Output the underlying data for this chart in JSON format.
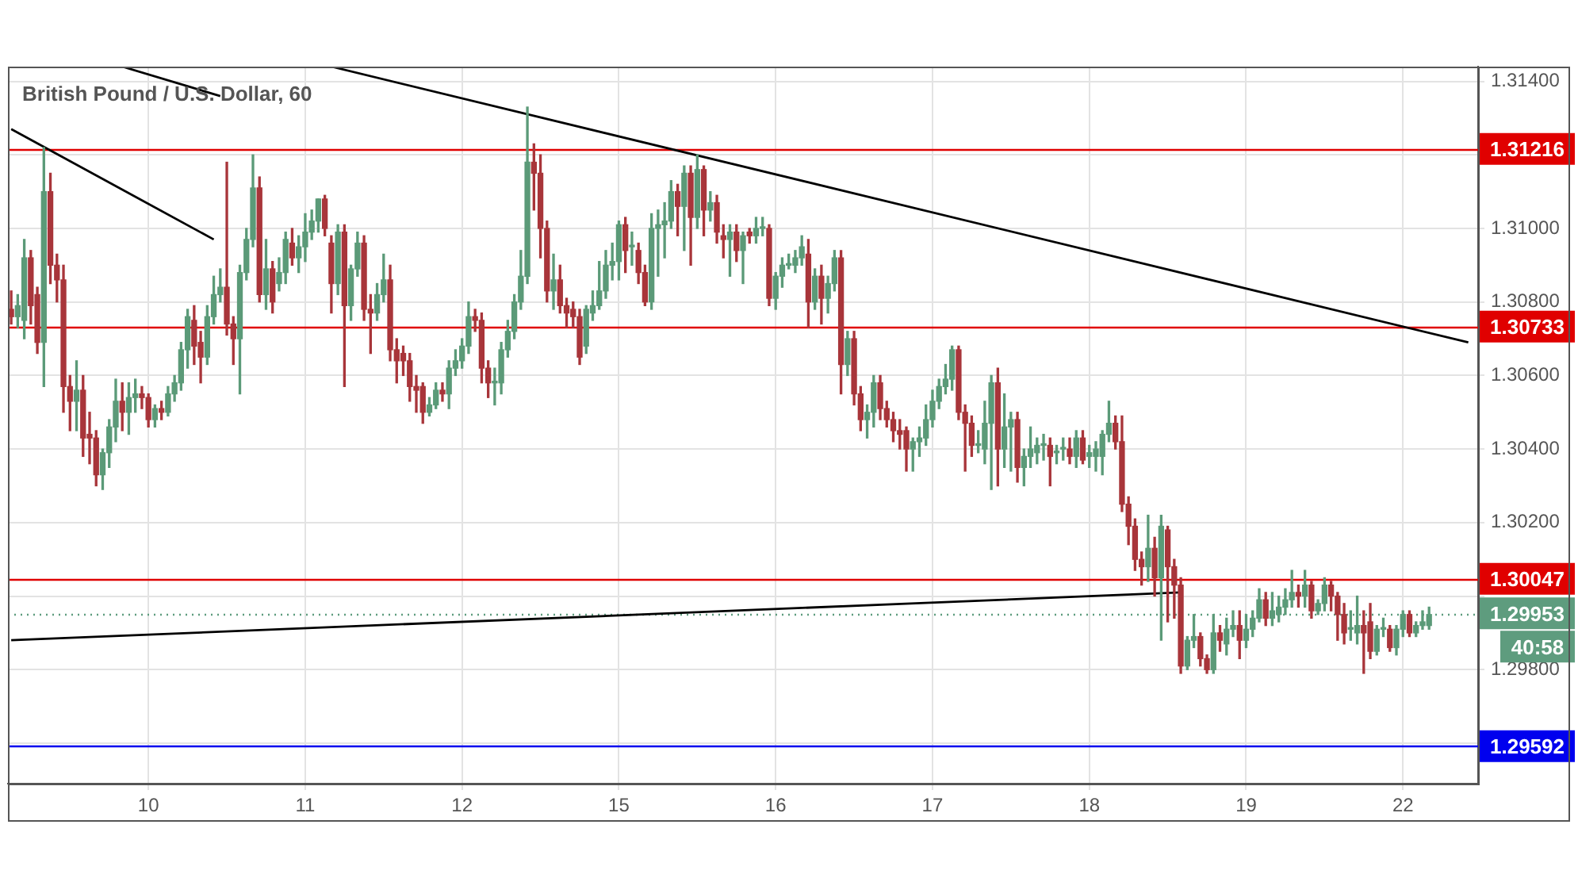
{
  "chart_data": {
    "type": "candlestick",
    "title": "British Pound / U.S. Dollar, 60",
    "categories": [
      null,
      null,
      null,
      null,
      null,
      null,
      null,
      null,
      null,
      null,
      null,
      null,
      null,
      null,
      null,
      null,
      null,
      null,
      null,
      null,
      null,
      "10",
      null,
      null,
      null,
      null,
      null,
      null,
      null,
      null,
      null,
      null,
      null,
      null,
      null,
      null,
      null,
      null,
      null,
      null,
      null,
      null,
      null,
      null,
      null,
      "11",
      null,
      null,
      null,
      null,
      null,
      null,
      null,
      null,
      null,
      null,
      null,
      null,
      null,
      null,
      null,
      null,
      null,
      null,
      null,
      null,
      null,
      null,
      null,
      "12",
      null,
      null,
      null,
      null,
      null,
      null,
      null,
      null,
      null,
      null,
      null,
      null,
      null,
      null,
      null,
      null,
      null,
      null,
      null,
      null,
      null,
      null,
      null,
      "15",
      null,
      null,
      null,
      null,
      null,
      null,
      null,
      null,
      null,
      null,
      null,
      null,
      null,
      null,
      null,
      null,
      null,
      null,
      null,
      null,
      null,
      null,
      null,
      "16",
      null,
      null,
      null,
      null,
      null,
      null,
      null,
      null,
      null,
      null,
      null,
      null,
      null,
      null,
      null,
      null,
      null,
      null,
      null,
      null,
      null,
      null,
      null,
      "17",
      null,
      null,
      null,
      null,
      null,
      null,
      null,
      null,
      null,
      null,
      null,
      null,
      null,
      null,
      null,
      null,
      null,
      null,
      null,
      null,
      null,
      null,
      null,
      "18",
      null,
      null,
      null,
      null,
      null,
      null,
      null,
      null,
      null,
      null,
      null,
      null,
      null,
      null,
      null,
      null,
      null,
      null,
      null,
      null,
      null,
      null,
      null,
      "19",
      null,
      null,
      null,
      null,
      null,
      null,
      null,
      null,
      null,
      null,
      null,
      null,
      null,
      null,
      null,
      null,
      null,
      null,
      null,
      null,
      null,
      null,
      null,
      "22",
      null,
      null,
      null,
      null,
      null,
      null,
      null,
      null,
      null,
      null,
      null
    ],
    "ohlc": [
      [
        1.3078,
        1.3083,
        1.3074,
        1.3076
      ],
      [
        1.3076,
        1.3082,
        1.3073,
        1.3079
      ],
      [
        1.3075,
        1.3097,
        1.307,
        1.3092
      ],
      [
        1.3092,
        1.3094,
        1.3074,
        1.3079
      ],
      [
        1.3082,
        1.3084,
        1.3066,
        1.3069
      ],
      [
        1.3069,
        1.3122,
        1.3057,
        1.311
      ],
      [
        1.311,
        1.3115,
        1.3085,
        1.309
      ],
      [
        1.309,
        1.3093,
        1.308,
        1.3086
      ],
      [
        1.3086,
        1.309,
        1.305,
        1.3057
      ],
      [
        1.3057,
        1.306,
        1.3045,
        1.3053
      ],
      [
        1.3053,
        1.3064,
        1.3045,
        1.3056
      ],
      [
        1.3056,
        1.306,
        1.3038,
        1.3043
      ],
      [
        1.3044,
        1.305,
        1.3036,
        1.3043
      ],
      [
        1.3043,
        1.3045,
        1.303,
        1.3033
      ],
      [
        1.3033,
        1.304,
        1.3029,
        1.3039
      ],
      [
        1.3039,
        1.3048,
        1.3035,
        1.3046
      ],
      [
        1.3046,
        1.3059,
        1.3042,
        1.3053
      ],
      [
        1.3053,
        1.3058,
        1.3045,
        1.305
      ],
      [
        1.305,
        1.3058,
        1.3044,
        1.3054
      ],
      [
        1.3054,
        1.3059,
        1.305,
        1.3055
      ],
      [
        1.3055,
        1.3057,
        1.3051,
        1.3054
      ],
      [
        1.3054,
        1.3055,
        1.3046,
        1.3048
      ],
      [
        1.3048,
        1.3052,
        1.3046,
        1.3051
      ],
      [
        1.3051,
        1.3053,
        1.3048,
        1.305
      ],
      [
        1.305,
        1.3057,
        1.3049,
        1.3055
      ],
      [
        1.3055,
        1.306,
        1.3053,
        1.3058
      ],
      [
        1.3058,
        1.3069,
        1.3056,
        1.3067
      ],
      [
        1.3067,
        1.3078,
        1.3062,
        1.3076
      ],
      [
        1.3075,
        1.3079,
        1.3063,
        1.3068
      ],
      [
        1.3069,
        1.3072,
        1.3058,
        1.3065
      ],
      [
        1.3065,
        1.3079,
        1.3063,
        1.3076
      ],
      [
        1.3076,
        1.3087,
        1.3074,
        1.3082
      ],
      [
        1.3082,
        1.3089,
        1.308,
        1.3084
      ],
      [
        1.3084,
        1.3118,
        1.3071,
        1.3074
      ],
      [
        1.3074,
        1.3076,
        1.3063,
        1.307
      ],
      [
        1.307,
        1.309,
        1.3055,
        1.3088
      ],
      [
        1.3088,
        1.31,
        1.3086,
        1.3097
      ],
      [
        1.3097,
        1.312,
        1.3095,
        1.3111
      ],
      [
        1.3111,
        1.3114,
        1.308,
        1.3082
      ],
      [
        1.3082,
        1.3097,
        1.3078,
        1.3089
      ],
      [
        1.3089,
        1.3091,
        1.3077,
        1.308
      ],
      [
        1.3085,
        1.3092,
        1.3083,
        1.3088
      ],
      [
        1.3088,
        1.3099,
        1.3085,
        1.3097
      ],
      [
        1.3096,
        1.31,
        1.309,
        1.3092
      ],
      [
        1.3092,
        1.3098,
        1.3088,
        1.3095
      ],
      [
        1.3095,
        1.3104,
        1.3091,
        1.3099
      ],
      [
        1.3099,
        1.3105,
        1.3097,
        1.3102
      ],
      [
        1.3102,
        1.3108,
        1.3099,
        1.3108
      ],
      [
        1.3108,
        1.3109,
        1.3098,
        1.31
      ],
      [
        1.3096,
        1.3098,
        1.3077,
        1.3085
      ],
      [
        1.3085,
        1.3101,
        1.3082,
        1.3099
      ],
      [
        1.3099,
        1.3101,
        1.3057,
        1.3079
      ],
      [
        1.3079,
        1.309,
        1.3075,
        1.3089
      ],
      [
        1.3089,
        1.3099,
        1.3087,
        1.3096
      ],
      [
        1.3096,
        1.3098,
        1.3075,
        1.3078
      ],
      [
        1.3078,
        1.3082,
        1.3066,
        1.3077
      ],
      [
        1.3077,
        1.3085,
        1.3075,
        1.3082
      ],
      [
        1.3082,
        1.3093,
        1.308,
        1.3086
      ],
      [
        1.3086,
        1.309,
        1.3064,
        1.3067
      ],
      [
        1.3067,
        1.307,
        1.3058,
        1.3064
      ],
      [
        1.3066,
        1.3068,
        1.306,
        1.3064
      ],
      [
        1.3064,
        1.3066,
        1.3053,
        1.3057
      ],
      [
        1.3057,
        1.306,
        1.305,
        1.3056
      ],
      [
        1.3057,
        1.3058,
        1.3047,
        1.305
      ],
      [
        1.305,
        1.3054,
        1.3049,
        1.3052
      ],
      [
        1.3052,
        1.3058,
        1.3051,
        1.3056
      ],
      [
        1.3056,
        1.3058,
        1.3053,
        1.3055
      ],
      [
        1.3055,
        1.3064,
        1.3051,
        1.3062
      ],
      [
        1.3062,
        1.3067,
        1.306,
        1.3064
      ],
      [
        1.3064,
        1.307,
        1.3062,
        1.3068
      ],
      [
        1.3068,
        1.308,
        1.3066,
        1.3076
      ],
      [
        1.3076,
        1.3078,
        1.3072,
        1.3075
      ],
      [
        1.3075,
        1.3077,
        1.3058,
        1.3062
      ],
      [
        1.3062,
        1.3064,
        1.3054,
        1.3058
      ],
      [
        1.3058,
        1.3062,
        1.3052,
        1.3058
      ],
      [
        1.3058,
        1.3069,
        1.3055,
        1.3067
      ],
      [
        1.3067,
        1.3075,
        1.3065,
        1.3072
      ],
      [
        1.3072,
        1.3082,
        1.307,
        1.308
      ],
      [
        1.308,
        1.3094,
        1.3078,
        1.3087
      ],
      [
        1.3087,
        1.3133,
        1.3085,
        1.3118
      ],
      [
        1.3118,
        1.3123,
        1.3105,
        1.3115
      ],
      [
        1.3115,
        1.312,
        1.3092,
        1.31
      ],
      [
        1.31,
        1.3102,
        1.308,
        1.3083
      ],
      [
        1.3083,
        1.3093,
        1.3078,
        1.3086
      ],
      [
        1.3086,
        1.309,
        1.3077,
        1.3079
      ],
      [
        1.3079,
        1.3081,
        1.3073,
        1.3077
      ],
      [
        1.3078,
        1.308,
        1.3073,
        1.3076
      ],
      [
        1.3076,
        1.3078,
        1.3063,
        1.3065
      ],
      [
        1.3068,
        1.3079,
        1.3066,
        1.3078
      ],
      [
        1.3077,
        1.3083,
        1.3075,
        1.3079
      ],
      [
        1.3079,
        1.3091,
        1.3078,
        1.3083
      ],
      [
        1.3083,
        1.3094,
        1.3081,
        1.309
      ],
      [
        1.309,
        1.3096,
        1.3086,
        1.3091
      ],
      [
        1.3091,
        1.3102,
        1.3086,
        1.3101
      ],
      [
        1.3101,
        1.3103,
        1.3088,
        1.3094
      ],
      [
        1.3095,
        1.3099,
        1.309,
        1.3095
      ],
      [
        1.3094,
        1.3096,
        1.3085,
        1.3088
      ],
      [
        1.3088,
        1.309,
        1.3079,
        1.308
      ],
      [
        1.308,
        1.3104,
        1.3078,
        1.31
      ],
      [
        1.31,
        1.3105,
        1.3087,
        1.3101
      ],
      [
        1.3101,
        1.3107,
        1.3092,
        1.3102
      ],
      [
        1.3102,
        1.3113,
        1.31,
        1.311
      ],
      [
        1.311,
        1.3112,
        1.3098,
        1.3106
      ],
      [
        1.3106,
        1.3117,
        1.3094,
        1.3115
      ],
      [
        1.3115,
        1.3117,
        1.309,
        1.3103
      ],
      [
        1.3103,
        1.312,
        1.31,
        1.3116
      ],
      [
        1.3116,
        1.3117,
        1.3098,
        1.3105
      ],
      [
        1.3105,
        1.311,
        1.3102,
        1.3107
      ],
      [
        1.3107,
        1.3109,
        1.3096,
        1.3099
      ],
      [
        1.3098,
        1.3101,
        1.3092,
        1.3097
      ],
      [
        1.3097,
        1.3101,
        1.3087,
        1.3099
      ],
      [
        1.3099,
        1.3101,
        1.3091,
        1.3094
      ],
      [
        1.3094,
        1.3099,
        1.3085,
        1.3098
      ],
      [
        1.3099,
        1.31,
        1.3096,
        1.3098
      ],
      [
        1.3098,
        1.3103,
        1.3096,
        1.31
      ],
      [
        1.31,
        1.3103,
        1.3098,
        1.31
      ],
      [
        1.31,
        1.3101,
        1.3079,
        1.3081
      ],
      [
        1.3081,
        1.3088,
        1.3078,
        1.3087
      ],
      [
        1.3087,
        1.3092,
        1.3084,
        1.309
      ],
      [
        1.309,
        1.3093,
        1.3089,
        1.309
      ],
      [
        1.309,
        1.3094,
        1.3088,
        1.3092
      ],
      [
        1.3092,
        1.3098,
        1.309,
        1.3095
      ],
      [
        1.3093,
        1.3097,
        1.3073,
        1.308
      ],
      [
        1.308,
        1.3089,
        1.3078,
        1.3087
      ],
      [
        1.3087,
        1.309,
        1.3074,
        1.3081
      ],
      [
        1.3081,
        1.3087,
        1.3077,
        1.3085
      ],
      [
        1.3085,
        1.3094,
        1.3083,
        1.3092
      ],
      [
        1.3092,
        1.3094,
        1.3055,
        1.3063
      ],
      [
        1.3063,
        1.3072,
        1.306,
        1.307
      ],
      [
        1.307,
        1.3072,
        1.3052,
        1.3055
      ],
      [
        1.3055,
        1.3057,
        1.3045,
        1.3048
      ],
      [
        1.3048,
        1.3052,
        1.3043,
        1.305
      ],
      [
        1.305,
        1.306,
        1.3046,
        1.3058
      ],
      [
        1.3058,
        1.306,
        1.3048,
        1.3051
      ],
      [
        1.3051,
        1.3053,
        1.3046,
        1.3048
      ],
      [
        1.3048,
        1.305,
        1.3042,
        1.3045
      ],
      [
        1.3045,
        1.3048,
        1.304,
        1.3044
      ],
      [
        1.3045,
        1.3046,
        1.3034,
        1.304
      ],
      [
        1.304,
        1.3043,
        1.3034,
        1.3042
      ],
      [
        1.3042,
        1.3046,
        1.3038,
        1.3043
      ],
      [
        1.3043,
        1.3052,
        1.3041,
        1.3048
      ],
      [
        1.3048,
        1.3056,
        1.3046,
        1.3053
      ],
      [
        1.3053,
        1.3059,
        1.3051,
        1.3057
      ],
      [
        1.3057,
        1.3063,
        1.3055,
        1.3059
      ],
      [
        1.3059,
        1.3068,
        1.3056,
        1.3067
      ],
      [
        1.3067,
        1.3068,
        1.3048,
        1.305
      ],
      [
        1.305,
        1.3052,
        1.3034,
        1.3047
      ],
      [
        1.3047,
        1.3049,
        1.3038,
        1.3041
      ],
      [
        1.3041,
        1.3045,
        1.3039,
        1.3041
      ],
      [
        1.304,
        1.3053,
        1.3036,
        1.3047
      ],
      [
        1.3047,
        1.306,
        1.3029,
        1.3058
      ],
      [
        1.3058,
        1.3062,
        1.303,
        1.304
      ],
      [
        1.304,
        1.3055,
        1.3035,
        1.3046
      ],
      [
        1.3046,
        1.305,
        1.3034,
        1.3048
      ],
      [
        1.3048,
        1.305,
        1.3031,
        1.3035
      ],
      [
        1.3035,
        1.304,
        1.303,
        1.3038
      ],
      [
        1.3038,
        1.3046,
        1.3035,
        1.304
      ],
      [
        1.3039,
        1.3043,
        1.3036,
        1.3041
      ],
      [
        1.3041,
        1.3044,
        1.3037,
        1.3041
      ],
      [
        1.3041,
        1.3043,
        1.303,
        1.3038
      ],
      [
        1.3039,
        1.3041,
        1.3036,
        1.3039
      ],
      [
        1.304,
        1.3043,
        1.3037,
        1.304
      ],
      [
        1.304,
        1.3043,
        1.3036,
        1.3038
      ],
      [
        1.3038,
        1.3045,
        1.3035,
        1.3043
      ],
      [
        1.3043,
        1.3045,
        1.3036,
        1.3037
      ],
      [
        1.3038,
        1.3041,
        1.3035,
        1.3039
      ],
      [
        1.3038,
        1.3042,
        1.3034,
        1.304
      ],
      [
        1.3038,
        1.3045,
        1.3033,
        1.3044
      ],
      [
        1.3044,
        1.3053,
        1.3042,
        1.3047
      ],
      [
        1.3047,
        1.3049,
        1.304,
        1.3042
      ],
      [
        1.3042,
        1.3049,
        1.3023,
        1.3025
      ],
      [
        1.3025,
        1.3027,
        1.3014,
        1.3019
      ],
      [
        1.3019,
        1.3021,
        1.3007,
        1.301
      ],
      [
        1.301,
        1.3012,
        1.3003,
        1.3008
      ],
      [
        1.3008,
        1.3022,
        1.3004,
        1.3013
      ],
      [
        1.3013,
        1.3016,
        1.3,
        1.3005
      ],
      [
        1.3005,
        1.3022,
        1.2988,
        1.3019
      ],
      [
        1.3018,
        1.3019,
        1.2993,
        1.3008
      ],
      [
        1.3008,
        1.301,
        1.2994,
        1.3003
      ],
      [
        1.3003,
        1.3005,
        1.2979,
        1.2981
      ],
      [
        1.2981,
        1.2989,
        1.298,
        1.2988
      ],
      [
        1.2988,
        1.2995,
        1.2986,
        1.2989
      ],
      [
        1.2989,
        1.299,
        1.2981,
        1.2983
      ],
      [
        1.2983,
        1.2984,
        1.2979,
        1.298
      ],
      [
        1.298,
        1.2995,
        1.2979,
        1.299
      ],
      [
        1.299,
        1.2992,
        1.2985,
        1.2988
      ],
      [
        1.2987,
        1.2994,
        1.2984,
        1.2991
      ],
      [
        1.2991,
        1.2996,
        1.2989,
        1.2992
      ],
      [
        1.2992,
        1.2996,
        1.2983,
        1.2988
      ],
      [
        1.2988,
        1.2995,
        1.2986,
        1.2991
      ],
      [
        1.2991,
        1.2996,
        1.2989,
        1.2994
      ],
      [
        1.2994,
        1.3002,
        1.2993,
        1.2999
      ],
      [
        1.2999,
        1.3001,
        1.2992,
        1.2994
      ],
      [
        1.2994,
        1.3001,
        1.2992,
        1.2996
      ],
      [
        1.2995,
        1.3,
        1.2993,
        1.2997
      ],
      [
        1.2997,
        1.3002,
        1.2995,
        1.2999
      ],
      [
        1.2999,
        1.3007,
        1.2997,
        1.3001
      ],
      [
        1.3001,
        1.3003,
        1.2997,
        1.3
      ],
      [
        1.3,
        1.3007,
        1.2997,
        1.3003
      ],
      [
        1.3003,
        1.3004,
        1.2994,
        1.2996
      ],
      [
        1.2996,
        1.2999,
        1.2995,
        1.2998
      ],
      [
        1.2998,
        1.3005,
        1.2996,
        1.3003
      ],
      [
        1.3003,
        1.3004,
        1.2996,
        1.3
      ],
      [
        1.3,
        1.3001,
        1.2988,
        1.2995
      ],
      [
        1.2995,
        1.2998,
        1.2987,
        1.299
      ],
      [
        1.2991,
        1.2996,
        1.2988,
        1.2991
      ],
      [
        1.299,
        1.3,
        1.2987,
        1.2992
      ],
      [
        1.2992,
        1.2996,
        1.2979,
        1.299
      ],
      [
        1.2993,
        1.2998,
        1.2983,
        1.2985
      ],
      [
        1.2985,
        1.2992,
        1.2984,
        1.2991
      ],
      [
        1.2991,
        1.2994,
        1.2989,
        1.2991
      ],
      [
        1.2991,
        1.2992,
        1.2985,
        1.2986
      ],
      [
        1.2986,
        1.2992,
        1.2984,
        1.2991
      ],
      [
        1.2991,
        1.2996,
        1.2989,
        1.2995
      ],
      [
        1.2995,
        1.2996,
        1.2989,
        1.299
      ],
      [
        1.299,
        1.2993,
        1.2989,
        1.2992
      ],
      [
        1.2992,
        1.2996,
        1.2991,
        1.2993
      ],
      [
        1.2992,
        1.2997,
        1.2991,
        1.2995
      ],
      null,
      null,
      null,
      null,
      null,
      null,
      null
    ],
    "series": [
      {
        "type": "line",
        "color": "#000000",
        "values": [
          1.3127,
          null,
          null,
          null,
          null,
          null,
          null,
          null,
          null,
          null,
          null,
          null,
          null,
          null,
          null,
          null,
          null,
          null,
          null,
          null,
          null,
          null,
          null,
          null,
          null,
          null,
          null,
          null,
          null,
          null,
          null,
          1.3097,
          null,
          null,
          null,
          null,
          null,
          null,
          null,
          null,
          null,
          null,
          null,
          null,
          null,
          null,
          null,
          null,
          null,
          null,
          null,
          null,
          null,
          null,
          null,
          null,
          null,
          null,
          null,
          null,
          null,
          null,
          null,
          null,
          null,
          null,
          null,
          null,
          null,
          null,
          null,
          null,
          null,
          null,
          null,
          null,
          null,
          null,
          null,
          null,
          null,
          null,
          null,
          null,
          null,
          null,
          null,
          null,
          null,
          null,
          null,
          null,
          null,
          null,
          null,
          null,
          null,
          null,
          null,
          null,
          null,
          null,
          null,
          null,
          null,
          null,
          null,
          null,
          null,
          null,
          null,
          null,
          null,
          null,
          null,
          null,
          null,
          null,
          null,
          null,
          null,
          null,
          null,
          null,
          null,
          null,
          null,
          null,
          null,
          null,
          null,
          null,
          null,
          null,
          null,
          null,
          null,
          null,
          null,
          null,
          null,
          null,
          null,
          null,
          null,
          null,
          null,
          null,
          null,
          null,
          null,
          null,
          null,
          null,
          null,
          null,
          null,
          null,
          null,
          null,
          null,
          null,
          null,
          null,
          null,
          null,
          null,
          null,
          null,
          null,
          null,
          null,
          null,
          null,
          null,
          null,
          null,
          null,
          null,
          null,
          null,
          null,
          null,
          null,
          null,
          null,
          null,
          null,
          null,
          null,
          null,
          null,
          null,
          null,
          null,
          null,
          null,
          null,
          null,
          null,
          null,
          null,
          null,
          null,
          null,
          null,
          null,
          null,
          null,
          null,
          null,
          null,
          null,
          null,
          null,
          null,
          null,
          null,
          null,
          null,
          null,
          null,
          null,
          null,
          null
        ]
      },
      {
        "type": "line",
        "color": "#000000",
        "values": [
          null,
          null,
          null,
          null,
          null,
          null,
          null,
          null,
          null,
          null,
          null,
          null,
          null,
          null,
          null,
          null,
          null,
          1.3144,
          null,
          null,
          null,
          null,
          null,
          null,
          null,
          null,
          null,
          null,
          null,
          null,
          null,
          null,
          1.3136,
          null,
          null,
          null,
          null,
          null,
          null,
          null,
          null,
          null,
          null,
          null,
          null,
          null,
          null,
          null,
          null,
          null,
          null,
          null,
          null,
          null,
          null,
          null,
          null,
          null,
          null,
          null,
          null,
          null,
          null,
          null,
          null,
          null,
          null,
          null,
          null,
          null,
          null,
          null,
          null,
          null,
          null,
          null,
          null,
          null,
          null,
          null,
          null,
          null,
          null,
          null,
          null,
          null,
          null,
          null,
          null,
          null,
          null,
          null,
          null,
          null,
          null,
          null,
          null,
          null,
          null,
          null,
          null,
          null,
          null,
          null,
          null,
          null,
          null,
          null,
          null,
          null,
          null,
          null,
          null,
          null,
          null,
          null,
          null,
          null,
          null,
          null,
          null,
          null,
          null,
          null,
          null,
          null,
          null,
          null,
          null,
          null,
          null,
          null,
          null,
          null,
          null,
          null,
          null,
          null,
          null,
          null,
          null,
          null,
          null,
          null,
          null,
          null,
          null,
          null,
          null,
          null,
          null,
          null,
          null,
          null,
          null,
          null,
          null,
          null,
          null,
          null,
          null,
          null,
          null,
          null,
          null,
          null,
          null,
          null,
          null,
          null,
          null,
          null,
          null,
          null,
          null,
          null,
          null,
          null,
          null,
          null,
          null,
          null,
          null,
          null,
          null,
          null,
          null,
          null,
          null,
          null,
          null,
          null,
          null,
          null,
          null,
          null,
          null,
          null,
          null,
          null,
          null,
          null,
          null,
          null,
          null,
          null,
          null,
          null,
          null,
          null,
          null,
          null,
          null,
          null,
          null,
          null,
          null,
          null,
          null,
          null,
          null,
          null,
          null,
          null,
          null
        ]
      },
      {
        "type": "line",
        "color": "#000000",
        "values": [
          null,
          null,
          null,
          null,
          null,
          null,
          null,
          null,
          null,
          null,
          null,
          null,
          null,
          null,
          null,
          null,
          null,
          null,
          null,
          null,
          null,
          null,
          null,
          null,
          null,
          null,
          null,
          null,
          null,
          null,
          null,
          null,
          null,
          null,
          null,
          null,
          null,
          null,
          null,
          null,
          null,
          null,
          null,
          null,
          null,
          null,
          null,
          null,
          null,
          1.3144,
          null,
          null,
          null,
          null,
          null,
          null,
          null,
          null,
          null,
          null,
          null,
          null,
          null,
          null,
          null,
          null,
          null,
          null,
          null,
          null,
          null,
          null,
          null,
          null,
          null,
          null,
          null,
          null,
          null,
          null,
          null,
          null,
          null,
          null,
          null,
          null,
          null,
          null,
          null,
          null,
          null,
          null,
          null,
          null,
          null,
          null,
          null,
          null,
          null,
          null,
          null,
          null,
          null,
          null,
          null,
          null,
          null,
          null,
          null,
          null,
          null,
          null,
          null,
          null,
          null,
          null,
          null,
          null,
          null,
          null,
          null,
          null,
          null,
          null,
          null,
          null,
          null,
          null,
          null,
          null,
          null,
          null,
          null,
          null,
          null,
          null,
          null,
          null,
          null,
          null,
          null,
          null,
          null,
          null,
          null,
          null,
          null,
          null,
          null,
          null,
          null,
          null,
          null,
          null,
          null,
          null,
          null,
          null,
          null,
          null,
          null,
          null,
          null,
          null,
          null,
          null,
          null,
          null,
          null,
          null,
          null,
          null,
          null,
          null,
          null,
          null,
          null,
          null,
          null,
          null,
          null,
          null,
          null,
          null,
          null,
          null,
          null,
          null,
          null,
          null,
          null,
          null,
          null,
          null,
          null,
          null,
          null,
          null,
          null,
          null,
          null,
          null,
          null,
          null,
          null,
          null,
          null,
          null,
          null,
          null,
          null,
          null,
          null,
          null,
          null,
          null,
          null,
          null,
          null,
          null,
          null,
          null,
          null,
          1.3069,
          null
        ]
      },
      {
        "type": "line",
        "color": "#000000",
        "values": [
          1.2988,
          null,
          null,
          null,
          null,
          null,
          null,
          null,
          null,
          null,
          null,
          null,
          null,
          null,
          null,
          null,
          null,
          null,
          null,
          null,
          null,
          null,
          null,
          null,
          null,
          null,
          null,
          null,
          null,
          null,
          null,
          null,
          null,
          null,
          null,
          null,
          null,
          null,
          null,
          null,
          null,
          null,
          null,
          null,
          null,
          null,
          null,
          null,
          null,
          null,
          null,
          null,
          null,
          null,
          null,
          null,
          null,
          null,
          null,
          null,
          null,
          null,
          null,
          null,
          null,
          null,
          null,
          null,
          null,
          null,
          null,
          null,
          null,
          null,
          null,
          null,
          null,
          null,
          null,
          null,
          null,
          null,
          null,
          null,
          null,
          null,
          null,
          null,
          null,
          null,
          null,
          null,
          null,
          null,
          null,
          null,
          null,
          null,
          null,
          null,
          null,
          null,
          null,
          null,
          null,
          null,
          null,
          null,
          null,
          null,
          null,
          null,
          null,
          null,
          null,
          null,
          null,
          null,
          null,
          null,
          null,
          null,
          null,
          null,
          null,
          null,
          null,
          null,
          null,
          null,
          null,
          null,
          null,
          null,
          null,
          null,
          null,
          null,
          null,
          null,
          null,
          null,
          null,
          null,
          null,
          null,
          null,
          null,
          null,
          null,
          null,
          null,
          null,
          null,
          null,
          null,
          null,
          null,
          null,
          null,
          null,
          null,
          null,
          null,
          null,
          null,
          null,
          null,
          null,
          null,
          null,
          null,
          null,
          null,
          null,
          null,
          null,
          null,
          null,
          1.3001,
          null,
          null,
          null,
          null,
          null,
          null,
          null,
          null,
          null,
          null,
          null,
          null,
          null,
          null,
          null,
          null,
          null,
          null,
          null,
          null,
          null,
          null,
          null,
          null,
          null,
          null,
          null,
          null,
          null,
          null,
          null,
          null,
          null,
          null,
          null,
          null,
          null,
          null,
          null,
          null,
          null,
          null,
          null,
          null,
          null
        ]
      }
    ],
    "ylim": [
      1.2949,
      1.3144
    ],
    "yticks": [
      {
        "value": 1.296,
        "label": null
      },
      {
        "value": 1.298,
        "label": "1.29800"
      },
      {
        "value": 1.3,
        "label": null
      },
      {
        "value": 1.302,
        "label": "1.30200"
      },
      {
        "value": 1.304,
        "label": "1.30400"
      },
      {
        "value": 1.306,
        "label": "1.30600"
      },
      {
        "value": 1.308,
        "label": "1.30800"
      },
      {
        "value": 1.31,
        "label": "1.31000"
      },
      {
        "value": 1.312,
        "label": null
      },
      {
        "value": 1.314,
        "label": "1.31400"
      }
    ],
    "ref_lines": [
      {
        "axis": "y",
        "value": 1.31216,
        "label": "1.31216",
        "color": "#e00000",
        "line_style": "solid"
      },
      {
        "axis": "y",
        "value": 1.30733,
        "label": "1.30733",
        "color": "#e00000",
        "line_style": "solid"
      },
      {
        "axis": "y",
        "value": 1.30047,
        "label": "1.30047",
        "color": "#e00000",
        "line_style": "solid"
      },
      {
        "axis": "y",
        "value": 1.29953,
        "label": "1.29953",
        "color": "#5e9c7e",
        "line_style": "dotted"
      },
      {
        "axis": "y",
        "value": 1.29592,
        "label": "1.29592",
        "color": "#0000ee",
        "line_style": "solid"
      }
    ],
    "annotations": [
      "40:58"
    ],
    "grid": true,
    "legend": false,
    "marker": "none"
  }
}
